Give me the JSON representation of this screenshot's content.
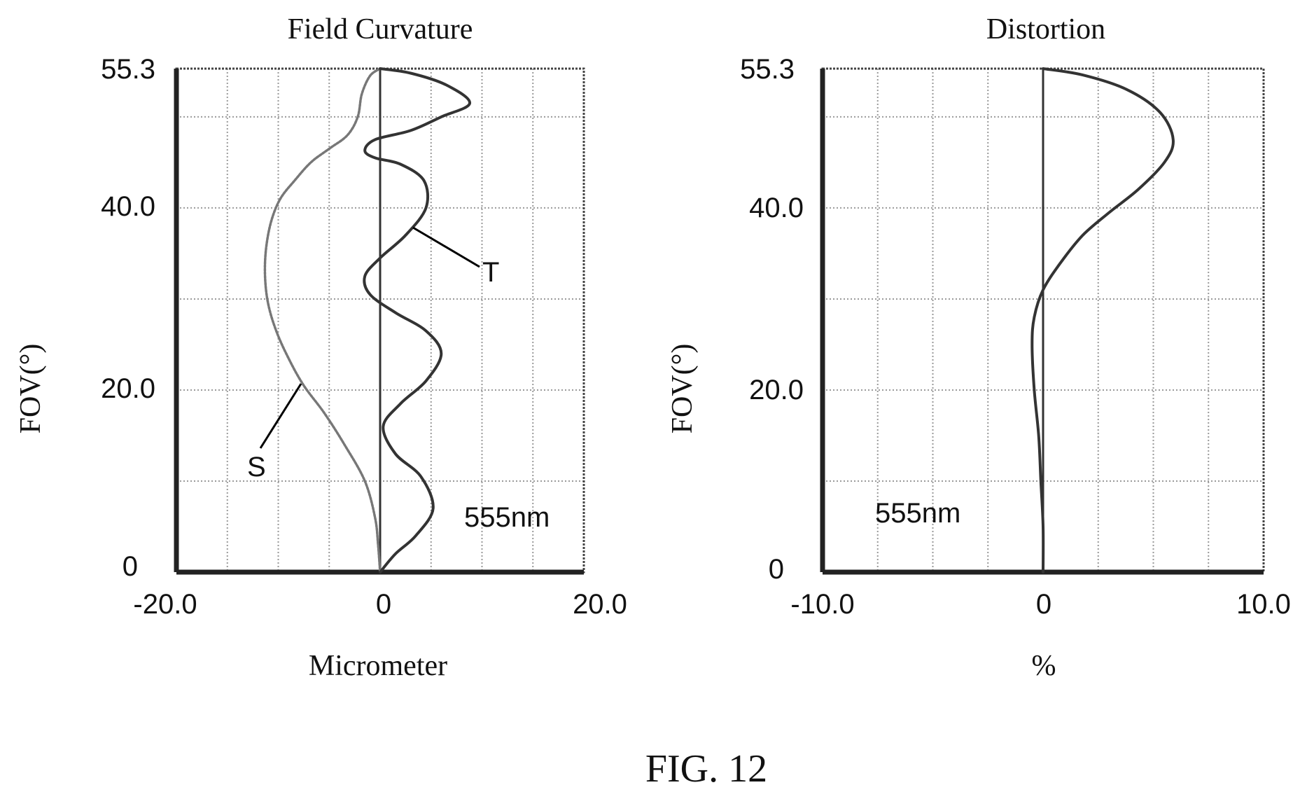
{
  "figure_label": "FIG. 12",
  "chart_data": [
    {
      "type": "line",
      "title": "Field Curvature",
      "xlabel": "Micrometer",
      "ylabel": "FOV(°)",
      "xlim": [
        -20.0,
        20.0
      ],
      "ylim": [
        0,
        55.3
      ],
      "x_tick_labels": [
        "-20.0",
        "0",
        "20.0"
      ],
      "y_tick_labels": [
        "0",
        "20.0",
        "40.0",
        "55.3"
      ],
      "grid": true,
      "annotation": "555nm",
      "series": [
        {
          "name": "S",
          "x": [
            0.0,
            -0.2,
            -0.5,
            -1.5,
            -3.5,
            -5.5,
            -7.5,
            -9.0,
            -10.2,
            -11.0,
            -11.3,
            -11.2,
            -10.7,
            -9.8,
            -8.4,
            -6.8,
            -5.0,
            -3.2,
            -2.2,
            -1.8,
            -1.0,
            0.0
          ],
          "y": [
            0,
            3,
            6,
            10,
            14,
            17.5,
            20.5,
            23.5,
            26.5,
            29.5,
            32.5,
            35.5,
            38.5,
            41,
            43,
            45,
            46.5,
            48,
            50,
            52.5,
            54.5,
            55.3
          ]
        },
        {
          "name": "T",
          "x": [
            0.0,
            1.5,
            3.5,
            5.2,
            4.0,
            1.5,
            0.3,
            2.0,
            4.5,
            6.0,
            4.5,
            1.5,
            -1.0,
            -1.5,
            0.0,
            2.5,
            4.5,
            4.3,
            2.0,
            -0.5,
            -1.5,
            -0.5,
            3.0,
            6.0,
            8.8,
            6.5,
            3.0,
            0.0
          ],
          "y": [
            0,
            2,
            4,
            7,
            10.5,
            13,
            16,
            18.5,
            21,
            24,
            26.5,
            28.5,
            30.5,
            32.5,
            34.5,
            37,
            40,
            43,
            44.8,
            45.5,
            46.3,
            47.5,
            48.5,
            50,
            51.5,
            53.5,
            54.8,
            55.3
          ]
        }
      ],
      "curve_labels": [
        "S",
        "T"
      ]
    },
    {
      "type": "line",
      "title": "Distortion",
      "xlabel": "%",
      "ylabel": "FOV(°)",
      "xlim": [
        -10.0,
        10.0
      ],
      "ylim": [
        0,
        55.3
      ],
      "x_tick_labels": [
        "-10.0",
        "0",
        "10.0"
      ],
      "y_tick_labels": [
        "0",
        "20.0",
        "40.0",
        "55.3"
      ],
      "grid": true,
      "annotation": "555nm",
      "series": [
        {
          "x": [
            0.0,
            0.0,
            -0.1,
            -0.2,
            -0.4,
            -0.5,
            -0.4,
            0.0,
            0.8,
            1.8,
            3.0,
            4.3,
            5.5,
            5.9,
            5.3,
            3.8,
            1.8,
            0.0
          ],
          "y": [
            0,
            5,
            10,
            15,
            20,
            25,
            28,
            31,
            34,
            37,
            39.5,
            42,
            45,
            47.5,
            50.5,
            53,
            54.6,
            55.3
          ]
        }
      ]
    }
  ]
}
